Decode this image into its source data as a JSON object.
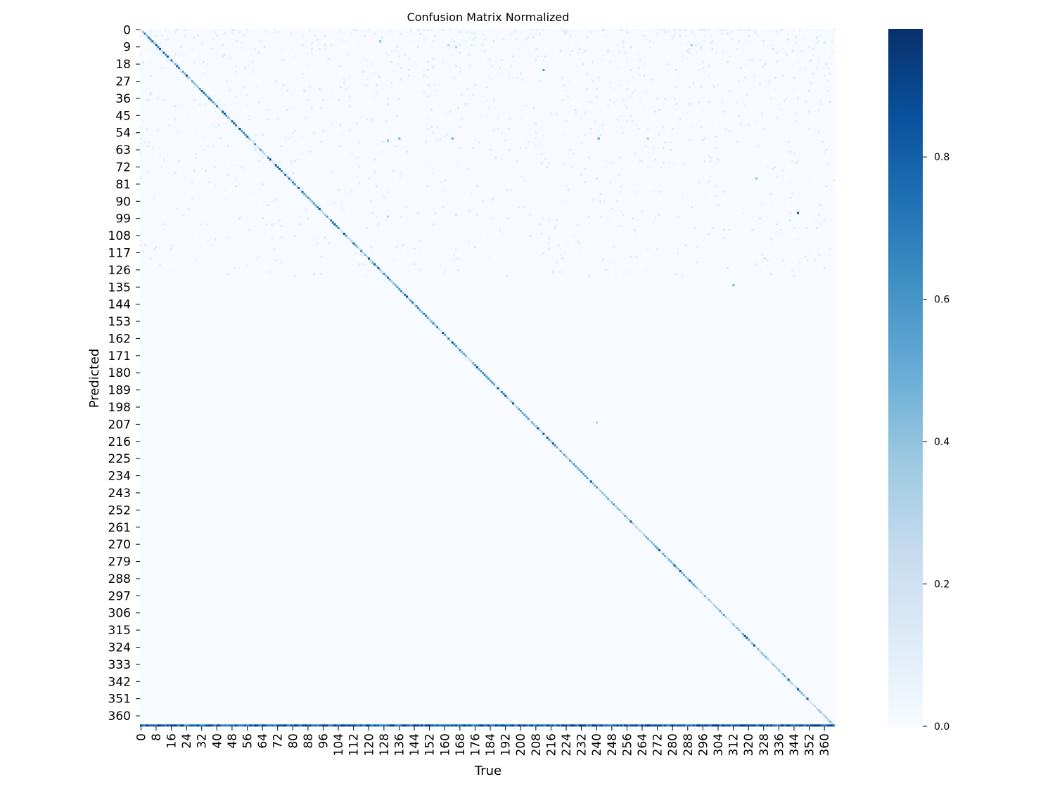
{
  "chart_data": {
    "type": "heatmap",
    "title": "Confusion Matrix Normalized",
    "xlabel": "True",
    "ylabel": "Predicted",
    "n_classes": 366,
    "x_tick_labels": [
      "0",
      "8",
      "16",
      "24",
      "32",
      "40",
      "48",
      "56",
      "64",
      "72",
      "80",
      "88",
      "96",
      "104",
      "112",
      "120",
      "128",
      "136",
      "144",
      "152",
      "160",
      "168",
      "176",
      "184",
      "192",
      "200",
      "208",
      "216",
      "224",
      "232",
      "240",
      "248",
      "256",
      "264",
      "272",
      "280",
      "288",
      "296",
      "304",
      "312",
      "320",
      "328",
      "336",
      "344",
      "352",
      "360"
    ],
    "y_tick_labels": [
      "0",
      "9",
      "18",
      "27",
      "36",
      "45",
      "54",
      "63",
      "72",
      "81",
      "90",
      "99",
      "108",
      "117",
      "126",
      "135",
      "144",
      "153",
      "162",
      "171",
      "180",
      "189",
      "198",
      "207",
      "216",
      "225",
      "234",
      "243",
      "252",
      "261",
      "270",
      "279",
      "288",
      "297",
      "306",
      "315",
      "324",
      "333",
      "342",
      "351",
      "360"
    ],
    "colorbar": {
      "range": [
        0,
        0.98
      ],
      "ticks": [
        "0.0",
        "0.2",
        "0.4",
        "0.6",
        "0.8"
      ],
      "colormap": "Blues"
    },
    "diagonal_value_range": [
      0.15,
      0.9
    ],
    "last_row_note_value": 0.9,
    "off_diagonal_highlights": [
      {
        "true": 126,
        "pred": 6,
        "value": 0.45
      },
      {
        "true": 162,
        "pred": 8,
        "value": 0.3
      },
      {
        "true": 166,
        "pred": 9,
        "value": 0.35
      },
      {
        "true": 212,
        "pred": 21,
        "value": 0.55
      },
      {
        "true": 290,
        "pred": 8,
        "value": 0.35
      },
      {
        "true": 130,
        "pred": 58,
        "value": 0.4
      },
      {
        "true": 136,
        "pred": 57,
        "value": 0.45
      },
      {
        "true": 164,
        "pred": 57,
        "value": 0.5
      },
      {
        "true": 241,
        "pred": 57,
        "value": 0.55
      },
      {
        "true": 267,
        "pred": 57,
        "value": 0.35
      },
      {
        "true": 346,
        "pred": 96,
        "value": 0.85
      },
      {
        "true": 324,
        "pred": 78,
        "value": 0.4
      },
      {
        "true": 312,
        "pred": 134,
        "value": 0.45
      },
      {
        "true": 240,
        "pred": 206,
        "value": 0.3
      },
      {
        "true": 130,
        "pred": 98,
        "value": 0.3
      }
    ]
  }
}
